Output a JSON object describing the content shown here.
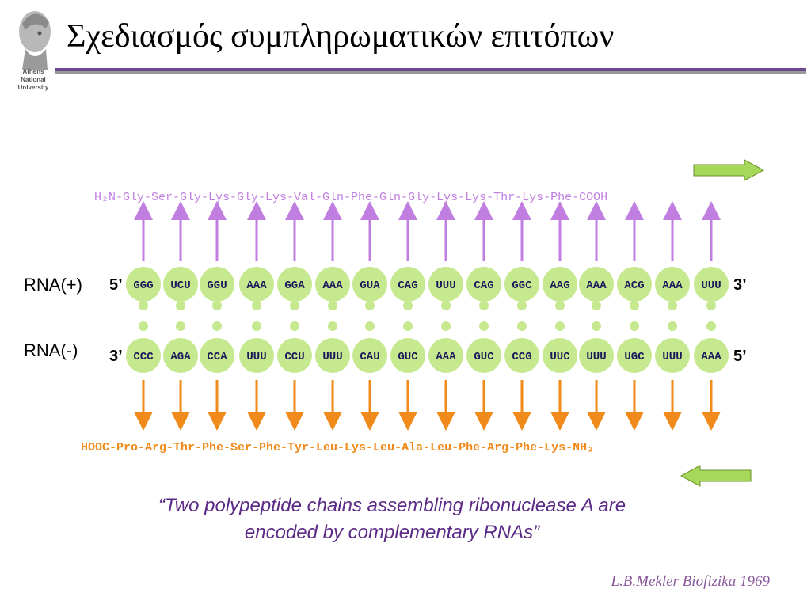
{
  "header": {
    "title": "Σχεδιασμός συμπληρωματικών επιτόπων",
    "logo_text": [
      "Athens",
      "National",
      "University"
    ]
  },
  "diagram": {
    "rna_plus_label": "RNA(+)",
    "rna_minus_label": "RNA(-)",
    "plus_start": "5’",
    "plus_end": "3’",
    "minus_start": "3’",
    "minus_end": "5’",
    "top_codons": [
      "GGG",
      "UCU",
      "GGU",
      "AAA",
      "GGA",
      "AAA",
      "GUA",
      "CAG",
      "UUU",
      "CAG",
      "GGC",
      "AAG",
      "AAA",
      "ACG",
      "AAA",
      "UUU"
    ],
    "bottom_codons": [
      "CCC",
      "AGA",
      "CCA",
      "UUU",
      "CCU",
      "UUU",
      "CAU",
      "GUC",
      "AAA",
      "GUC",
      "CCG",
      "UUC",
      "UUU",
      "UGC",
      "UUU",
      "AAA"
    ],
    "top_peptide": "H₂N-Gly-Ser-Gly-Lys-Gly-Lys-Val-Gln-Phe-Gln-Gly-Lys-Lys-Thr-Lys-Phe-COOH",
    "bottom_peptide": "HOOC-Pro-Arg-Thr-Phe-Ser-Phe-Tyr-Leu-Lys-Leu-Ala-Leu-Phe-Arg-Phe-Lys-NH₂",
    "colors": {
      "circle": "#c6e88e",
      "dot": "#c6e88e",
      "top_arrow": "#c07ee0",
      "bottom_arrow": "#f08a1a",
      "top_peptide": "#c07ee0",
      "bottom_peptide": "#f08a1a",
      "direction_arrow_fill": "#a6d95a",
      "title_rule": "#6b4a8e"
    }
  },
  "footer": {
    "quote_line1": "“Two polypeptide chains assembling ribonuclease A are",
    "quote_line2": "encoded by complementary RNAs”",
    "citation": "L.B.Mekler Biofizika 1969"
  }
}
